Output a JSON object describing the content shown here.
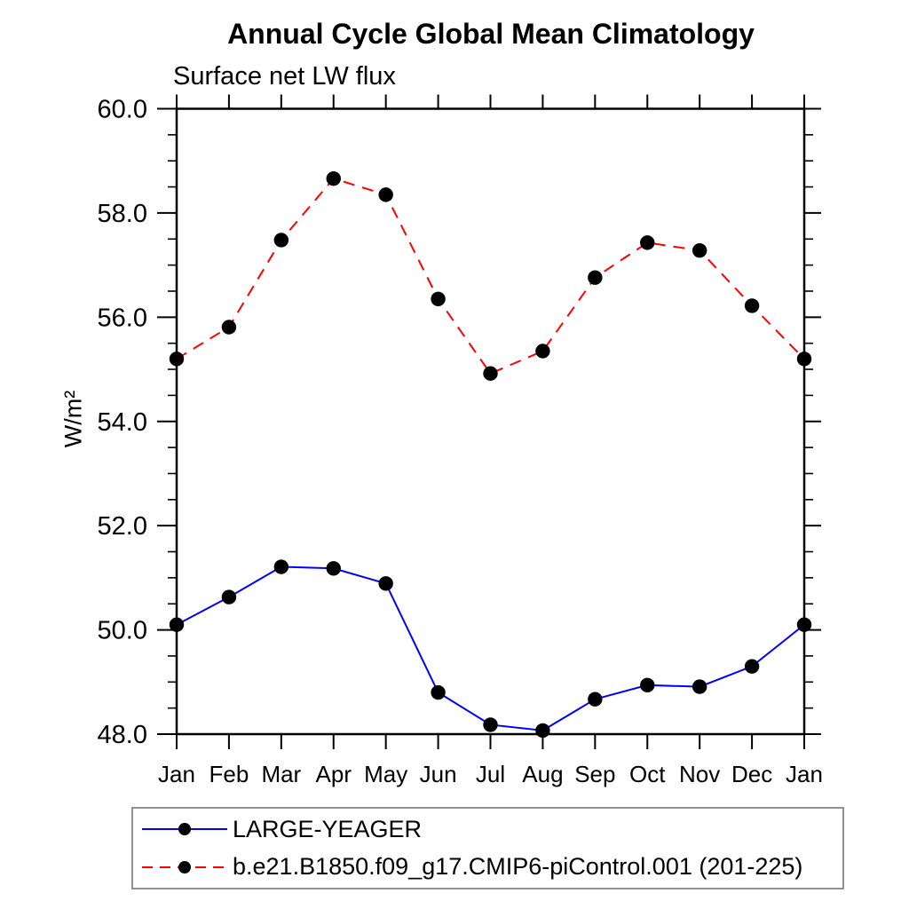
{
  "page": {
    "title": "Annual Cycle Global Mean Climatology",
    "subtitle": "Surface net LW flux",
    "ylabel": "W/m²"
  },
  "chart_data": {
    "type": "line",
    "title": "Annual Cycle Global Mean Climatology",
    "subtitle": "Surface net LW flux",
    "xlabel": "",
    "ylabel": "W/m²",
    "categories": [
      "Jan",
      "Feb",
      "Mar",
      "Apr",
      "May",
      "Jun",
      "Jul",
      "Aug",
      "Sep",
      "Oct",
      "Nov",
      "Dec",
      "Jan"
    ],
    "ylim": [
      48.0,
      60.0
    ],
    "ytick_major": 2.0,
    "ytick_minor": 0.5,
    "ytick_labels": [
      "48.0",
      "50.0",
      "52.0",
      "54.0",
      "56.0",
      "58.0",
      "60.0"
    ],
    "grid": false,
    "legend_position": "bottom-left-box",
    "axis_color": "#000000",
    "series": [
      {
        "name": "LARGE-YEAGER",
        "color": "#0000ff",
        "line_style": "solid",
        "marker": "circle",
        "marker_color": "#000000",
        "values": [
          50.1,
          50.63,
          51.21,
          51.18,
          50.89,
          48.8,
          48.18,
          48.07,
          48.67,
          48.94,
          48.91,
          49.3,
          50.1
        ]
      },
      {
        "name": "b.e21.B1850.f09_g17.CMIP6-piControl.001 (201-225)",
        "color": "#ff0000",
        "line_style": "dashed",
        "marker": "circle",
        "marker_color": "#000000",
        "values": [
          55.2,
          55.81,
          57.48,
          58.66,
          58.35,
          56.35,
          54.92,
          55.35,
          56.76,
          57.43,
          57.28,
          56.22,
          55.2
        ]
      }
    ]
  }
}
